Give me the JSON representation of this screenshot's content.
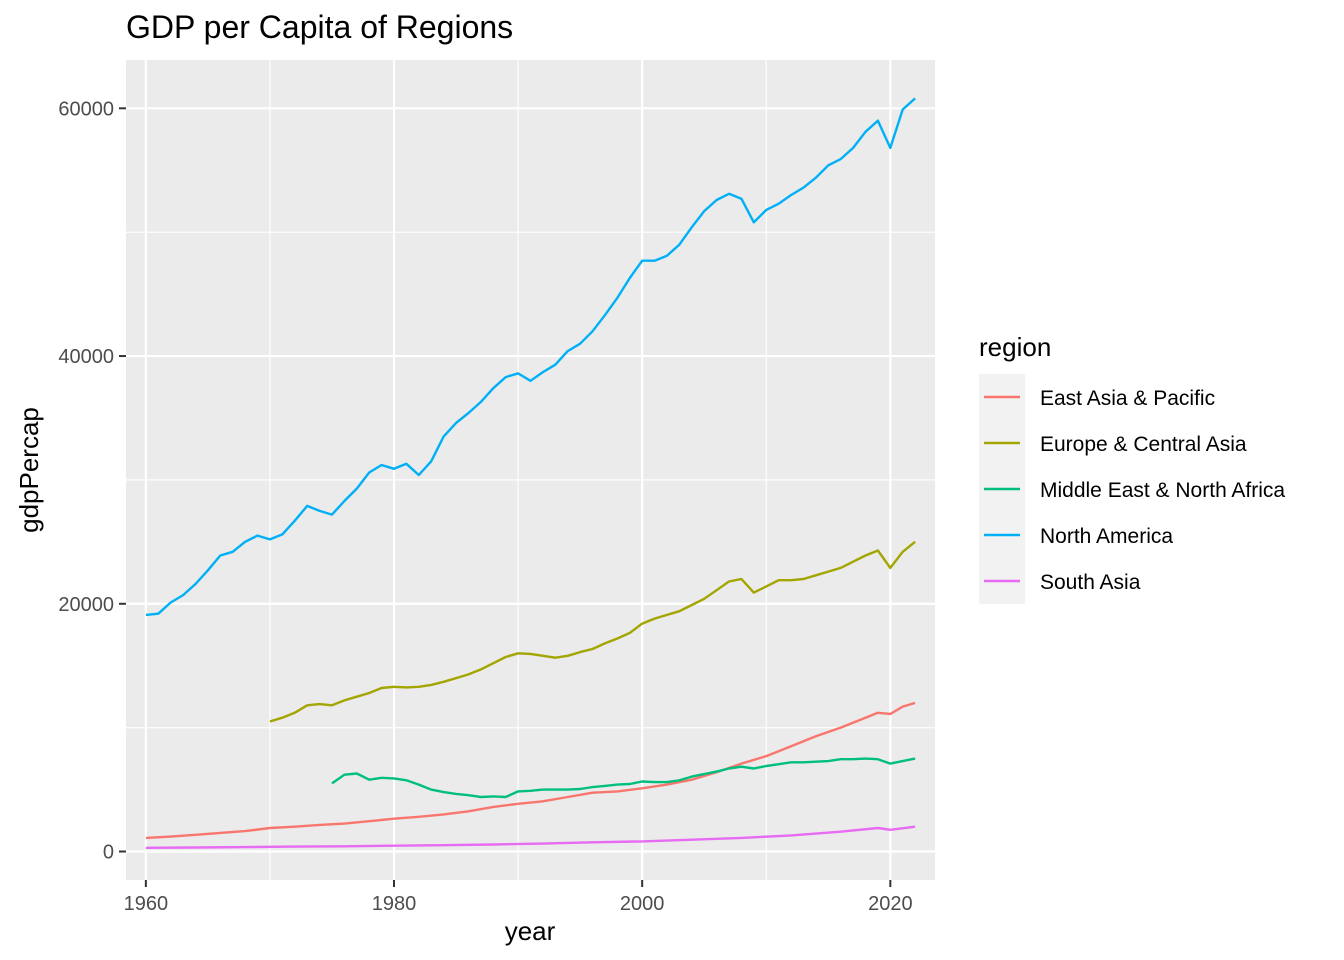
{
  "chart_data": {
    "type": "line",
    "title": "GDP per Capita of Regions",
    "xlabel": "year",
    "ylabel": "gdpPercap",
    "xlim": [
      1958.4,
      2023.6
    ],
    "ylim": [
      -2300,
      63900
    ],
    "x_ticks": [
      1960,
      1980,
      2000,
      2020
    ],
    "y_ticks": [
      0,
      20000,
      40000,
      60000
    ],
    "grid": true,
    "legend": {
      "title": "region",
      "placement": "right"
    },
    "series": [
      {
        "name": "East Asia & Pacific",
        "color": "#F8766D",
        "x": [
          1960,
          1962,
          1964,
          1966,
          1968,
          1970,
          1972,
          1974,
          1976,
          1978,
          1980,
          1982,
          1984,
          1986,
          1988,
          1990,
          1992,
          1994,
          1996,
          1998,
          2000,
          2002,
          2004,
          2006,
          2008,
          2010,
          2012,
          2014,
          2016,
          2018,
          2019,
          2020,
          2021,
          2022
        ],
        "y": [
          1100,
          1200,
          1350,
          1500,
          1650,
          1900,
          2000,
          2150,
          2250,
          2450,
          2650,
          2800,
          3000,
          3250,
          3600,
          3850,
          4050,
          4400,
          4750,
          4850,
          5100,
          5400,
          5800,
          6400,
          7100,
          7700,
          8500,
          9300,
          10000,
          10800,
          11200,
          11100,
          11700,
          12000
        ]
      },
      {
        "name": "Europe & Central Asia",
        "color": "#A3A500",
        "x": [
          1970,
          1971,
          1972,
          1973,
          1974,
          1975,
          1976,
          1977,
          1978,
          1979,
          1980,
          1981,
          1982,
          1983,
          1984,
          1985,
          1986,
          1987,
          1988,
          1989,
          1990,
          1991,
          1992,
          1993,
          1994,
          1995,
          1996,
          1997,
          1998,
          1999,
          2000,
          2001,
          2002,
          2003,
          2004,
          2005,
          2006,
          2007,
          2008,
          2009,
          2010,
          2011,
          2012,
          2013,
          2014,
          2015,
          2016,
          2017,
          2018,
          2019,
          2020,
          2021,
          2022
        ],
        "y": [
          10500,
          10800,
          11200,
          11800,
          11900,
          11800,
          12200,
          12500,
          12800,
          13200,
          13300,
          13250,
          13300,
          13450,
          13700,
          14000,
          14300,
          14700,
          15200,
          15700,
          16000,
          15950,
          15800,
          15650,
          15800,
          16100,
          16350,
          16800,
          17200,
          17650,
          18400,
          18800,
          19100,
          19400,
          19900,
          20400,
          21100,
          21800,
          22000,
          20900,
          21400,
          21900,
          21900,
          22000,
          22300,
          22600,
          22900,
          23400,
          23900,
          24300,
          22900,
          24200,
          25000
        ]
      },
      {
        "name": "Middle East & North Africa",
        "color": "#00BF7D",
        "x": [
          1975,
          1976,
          1977,
          1978,
          1979,
          1980,
          1981,
          1982,
          1983,
          1984,
          1985,
          1986,
          1987,
          1988,
          1989,
          1990,
          1991,
          1992,
          1993,
          1994,
          1995,
          1996,
          1997,
          1998,
          1999,
          2000,
          2001,
          2002,
          2003,
          2004,
          2005,
          2006,
          2007,
          2008,
          2009,
          2010,
          2011,
          2012,
          2013,
          2014,
          2015,
          2016,
          2017,
          2018,
          2019,
          2020,
          2021,
          2022
        ],
        "y": [
          5500,
          6200,
          6300,
          5800,
          5950,
          5900,
          5750,
          5400,
          5000,
          4800,
          4650,
          4550,
          4400,
          4450,
          4400,
          4850,
          4900,
          5000,
          5000,
          5000,
          5050,
          5200,
          5300,
          5400,
          5450,
          5650,
          5600,
          5600,
          5750,
          6050,
          6250,
          6450,
          6700,
          6850,
          6700,
          6900,
          7050,
          7200,
          7200,
          7250,
          7300,
          7450,
          7450,
          7500,
          7450,
          7100,
          7300,
          7500
        ]
      },
      {
        "name": "North America",
        "color": "#00B0F6",
        "x": [
          1960,
          1961,
          1962,
          1963,
          1964,
          1965,
          1966,
          1967,
          1968,
          1969,
          1970,
          1971,
          1972,
          1973,
          1974,
          1975,
          1976,
          1977,
          1978,
          1979,
          1980,
          1981,
          1982,
          1983,
          1984,
          1985,
          1986,
          1987,
          1988,
          1989,
          1990,
          1991,
          1992,
          1993,
          1994,
          1995,
          1996,
          1997,
          1998,
          1999,
          2000,
          2001,
          2002,
          2003,
          2004,
          2005,
          2006,
          2007,
          2008,
          2009,
          2010,
          2011,
          2012,
          2013,
          2014,
          2015,
          2016,
          2017,
          2018,
          2019,
          2020,
          2021,
          2022
        ],
        "y": [
          19100,
          19200,
          20100,
          20700,
          21600,
          22700,
          23900,
          24200,
          25000,
          25500,
          25200,
          25600,
          26700,
          27900,
          27500,
          27200,
          28300,
          29300,
          30600,
          31200,
          30900,
          31300,
          30400,
          31500,
          33500,
          34600,
          35400,
          36300,
          37400,
          38300,
          38600,
          38000,
          38700,
          39300,
          40400,
          41000,
          42000,
          43300,
          44700,
          46300,
          47700,
          47700,
          48100,
          49000,
          50400,
          51700,
          52600,
          53100,
          52700,
          50800,
          51800,
          52300,
          53000,
          53600,
          54400,
          55400,
          55900,
          56800,
          58100,
          59000,
          56800,
          59900,
          60800
        ]
      },
      {
        "name": "South Asia",
        "color": "#E76BF3",
        "x": [
          1960,
          1964,
          1968,
          1972,
          1976,
          1980,
          1984,
          1988,
          1992,
          1996,
          2000,
          2004,
          2008,
          2012,
          2016,
          2019,
          2020,
          2022
        ],
        "y": [
          300,
          320,
          360,
          400,
          420,
          470,
          510,
          570,
          640,
          740,
          820,
          950,
          1100,
          1300,
          1600,
          1900,
          1750,
          2000
        ]
      }
    ]
  }
}
